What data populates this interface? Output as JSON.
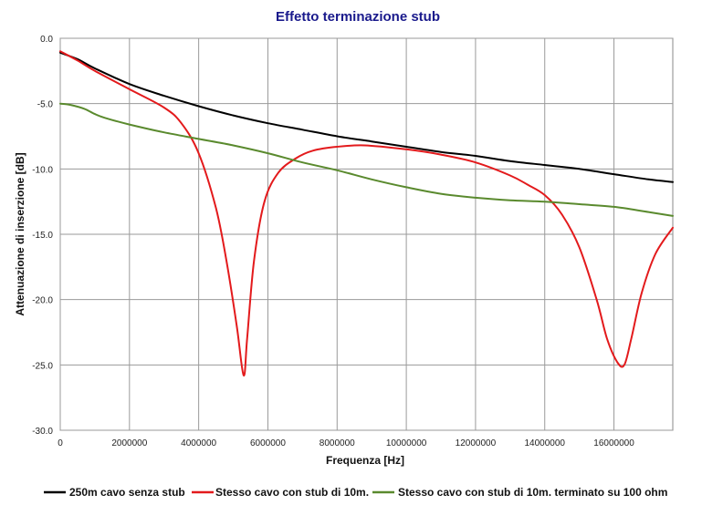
{
  "chart_data": {
    "type": "line",
    "title": "Effetto terminazione stub",
    "xlabel": "Frequenza [Hz]",
    "ylabel": "Attenuazione di inserzione [dB]",
    "xlim": [
      0,
      17700000
    ],
    "ylim": [
      -30,
      0
    ],
    "x_ticks": [
      "0",
      "2000000",
      "4000000",
      "6000000",
      "8000000",
      "10000000",
      "12000000",
      "14000000",
      "16000000"
    ],
    "y_ticks": [
      "0.0",
      "-5.0",
      "-10.0",
      "-15.0",
      "-20.0",
      "-25.0",
      "-30.0"
    ],
    "grid": true,
    "legend_position": "bottom",
    "series": [
      {
        "name": "250m cavo senza stub",
        "color": "#000000",
        "x": [
          0,
          500000,
          1000000,
          2000000,
          3000000,
          4000000,
          5000000,
          6000000,
          7000000,
          8000000,
          9000000,
          10000000,
          11000000,
          12000000,
          13000000,
          14000000,
          15000000,
          16000000,
          17000000,
          17700000
        ],
        "y": [
          -1.1,
          -1.6,
          -2.3,
          -3.5,
          -4.4,
          -5.2,
          -5.9,
          -6.5,
          -7.0,
          -7.5,
          -7.9,
          -8.3,
          -8.7,
          -9.0,
          -9.4,
          -9.7,
          -10.0,
          -10.4,
          -10.8,
          -11.0
        ]
      },
      {
        "name": "Stesso cavo con stub di 10m.",
        "color": "#e31a1c",
        "x": [
          0,
          500000,
          1000000,
          2000000,
          3000000,
          3500000,
          4000000,
          4500000,
          4800000,
          5100000,
          5300000,
          5400000,
          5600000,
          5900000,
          6300000,
          6800000,
          7300000,
          8000000,
          8800000,
          10000000,
          11000000,
          12000000,
          13000000,
          13500000,
          14000000,
          14500000,
          15000000,
          15500000,
          15800000,
          16100000,
          16300000,
          16500000,
          16800000,
          17200000,
          17700000
        ],
        "y": [
          -1.0,
          -1.7,
          -2.5,
          -3.9,
          -5.3,
          -6.5,
          -8.8,
          -13.0,
          -17.0,
          -22.0,
          -25.8,
          -23.0,
          -17.0,
          -12.5,
          -10.3,
          -9.2,
          -8.6,
          -8.3,
          -8.2,
          -8.5,
          -8.9,
          -9.5,
          -10.5,
          -11.2,
          -12.0,
          -13.5,
          -16.0,
          -20.0,
          -23.0,
          -24.8,
          -25.0,
          -23.0,
          -19.5,
          -16.5,
          -14.5
        ]
      },
      {
        "name": "Stesso cavo con stub di 10m. terminato su 100 ohm",
        "color": "#5a8a2e",
        "x": [
          0,
          300000,
          700000,
          1000000,
          1300000,
          2000000,
          3000000,
          4000000,
          5000000,
          6000000,
          7000000,
          8000000,
          9000000,
          10000000,
          11000000,
          12000000,
          13000000,
          14000000,
          15000000,
          16000000,
          17000000,
          17700000
        ],
        "y": [
          -5.0,
          -5.1,
          -5.4,
          -5.8,
          -6.1,
          -6.6,
          -7.2,
          -7.7,
          -8.2,
          -8.8,
          -9.5,
          -10.1,
          -10.8,
          -11.4,
          -11.9,
          -12.2,
          -12.4,
          -12.5,
          -12.7,
          -12.9,
          -13.3,
          -13.6
        ]
      }
    ]
  }
}
